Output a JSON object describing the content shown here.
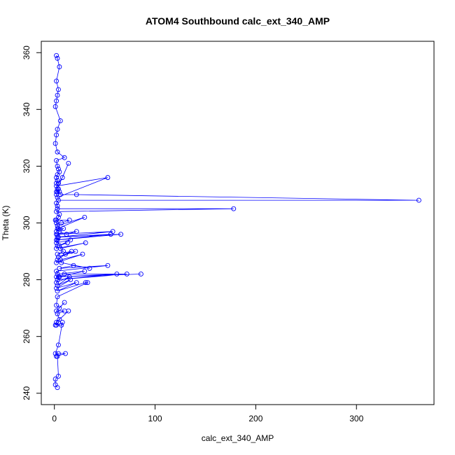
{
  "chart_data": {
    "type": "scatter",
    "title": "ATOM4 Southbound calc_ext_340_AMP",
    "xlabel": "calc_ext_340_AMP",
    "ylabel": "Theta (K)",
    "xlim": [
      -13,
      377
    ],
    "ylim": [
      236,
      364
    ],
    "xticks": [
      0,
      100,
      200,
      300
    ],
    "yticks": [
      240,
      260,
      280,
      300,
      320,
      340,
      360
    ],
    "grid": false,
    "legend": "none",
    "connect_points": true,
    "color": "#0000ff",
    "series": [
      {
        "x": [
          2,
          3,
          5,
          2,
          4,
          3,
          2,
          1,
          6,
          3,
          2,
          1,
          3,
          10,
          2,
          3,
          4,
          5,
          3,
          2,
          3,
          2,
          4,
          8,
          14,
          3,
          2,
          5,
          2,
          3,
          53,
          2,
          4,
          3,
          6,
          22,
          362,
          4,
          2,
          3,
          3,
          178,
          2,
          5,
          4,
          1,
          2,
          15,
          7,
          2,
          3,
          30,
          3,
          2,
          4,
          9,
          5,
          12,
          22,
          2,
          3,
          58,
          3,
          2,
          56,
          4,
          66,
          3,
          2,
          16,
          5,
          13,
          3,
          2,
          31,
          6,
          9,
          3,
          17,
          4,
          21,
          11,
          3,
          2,
          28,
          6,
          7,
          35,
          19,
          5,
          53,
          2,
          3,
          30,
          4,
          86,
          2,
          10,
          72,
          3,
          62,
          5,
          2,
          15,
          3,
          16,
          2,
          22,
          3,
          31,
          33,
          3,
          2,
          5,
          10,
          2,
          10,
          3,
          5,
          14,
          2,
          1,
          4,
          2,
          7,
          8,
          4,
          1,
          4,
          11,
          2,
          3,
          4,
          1,
          1,
          3
        ],
        "y": [
          359,
          358,
          355,
          350,
          347,
          345,
          343,
          341,
          336,
          333,
          331,
          328,
          325,
          323,
          322,
          320,
          319,
          318,
          317,
          316,
          315,
          314,
          314,
          316,
          321,
          312,
          311,
          311,
          310,
          309,
          316,
          313,
          312,
          311,
          310,
          310,
          308,
          308,
          307,
          306,
          305,
          305,
          304,
          303,
          302,
          301,
          301,
          301,
          300,
          300,
          299,
          302,
          298,
          297,
          298,
          298,
          297,
          296,
          297,
          296,
          296,
          297,
          295,
          294,
          296,
          295,
          296,
          294,
          293,
          294,
          292,
          293,
          292,
          291,
          293,
          291,
          290,
          289,
          290,
          288,
          290,
          289,
          287,
          286,
          289,
          287,
          286,
          284,
          285,
          284,
          285,
          283,
          282,
          283,
          281,
          282,
          281,
          282,
          282,
          280,
          282,
          281,
          279,
          281,
          278,
          280,
          277,
          279,
          276,
          279,
          279,
          274,
          271,
          270,
          272,
          269,
          269,
          268,
          266,
          269,
          265,
          264,
          265,
          264,
          264,
          265,
          257,
          254,
          254,
          254,
          253,
          253,
          246,
          245,
          243,
          242
        ]
      }
    ]
  }
}
